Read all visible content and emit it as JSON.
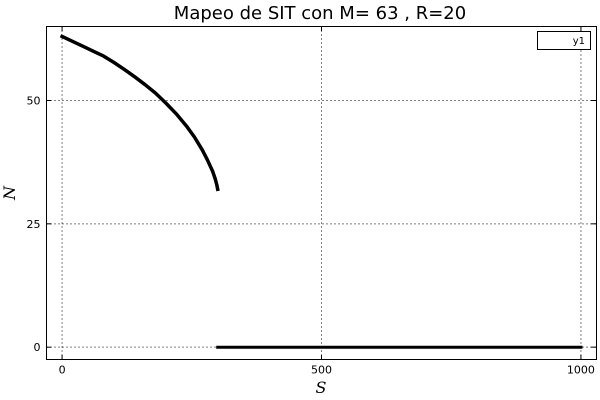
{
  "chart_data": {
    "type": "scatter",
    "title": "Mapeo de SIT con M= 63 , R=20",
    "xlabel": "S",
    "ylabel": "N",
    "xlim": [
      -30,
      1030
    ],
    "ylim": [
      -2.5,
      65
    ],
    "xticks": [
      0,
      500,
      1000
    ],
    "xtick_labels": [
      "0",
      "500",
      "1000"
    ],
    "yticks": [
      0,
      25,
      50
    ],
    "ytick_labels": [
      "0",
      "25",
      "50"
    ],
    "grid": true,
    "legend": {
      "position": "top-right",
      "entries": [
        "y1"
      ]
    },
    "series": [
      {
        "name": "y1",
        "color": "#000000",
        "segments": [
          {
            "kind": "curve",
            "points": [
              [
                0,
                63
              ],
              [
                20,
                62
              ],
              [
                40,
                61
              ],
              [
                60,
                60
              ],
              [
                80,
                59
              ],
              [
                100,
                57.7
              ],
              [
                120,
                56.3
              ],
              [
                140,
                54.8
              ],
              [
                160,
                53.2
              ],
              [
                180,
                51.5
              ],
              [
                200,
                49.5
              ],
              [
                220,
                47.3
              ],
              [
                240,
                44.8
              ],
              [
                255,
                42.6
              ],
              [
                270,
                40
              ],
              [
                280,
                38
              ],
              [
                290,
                35.7
              ],
              [
                295,
                34.2
              ],
              [
                298,
                33
              ],
              [
                300,
                32
              ]
            ]
          },
          {
            "kind": "flat",
            "points": [
              [
                300,
                0
              ],
              [
                1000,
                0
              ]
            ]
          }
        ]
      }
    ]
  }
}
